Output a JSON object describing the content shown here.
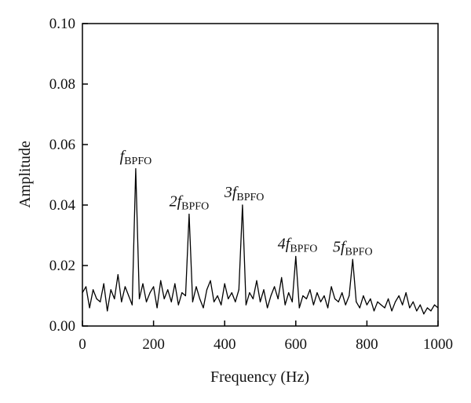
{
  "chart_data": {
    "type": "line",
    "xlabel": "Frequency (Hz)",
    "ylabel": "Amplitude",
    "xlim": [
      0,
      1000
    ],
    "ylim": [
      0,
      0.1
    ],
    "xticks": [
      0,
      200,
      400,
      600,
      800,
      1000
    ],
    "xtick_labels": [
      "0",
      "200",
      "400",
      "600",
      "800",
      "1000"
    ],
    "yticks": [
      0,
      0.02,
      0.04,
      0.06,
      0.08,
      0.1
    ],
    "ytick_labels": [
      "0.00",
      "0.02",
      "0.04",
      "0.06",
      "0.08",
      "0.10"
    ],
    "grid": false,
    "line_color": "#000000",
    "series": [
      {
        "x": [
          0,
          10,
          20,
          30,
          40,
          50,
          60,
          70,
          80,
          90,
          100,
          110,
          120,
          130,
          140,
          150,
          160,
          170,
          180,
          190,
          200,
          210,
          220,
          230,
          240,
          250,
          260,
          270,
          280,
          290,
          300,
          310,
          320,
          330,
          340,
          350,
          360,
          370,
          380,
          390,
          400,
          410,
          420,
          430,
          440,
          450,
          460,
          470,
          480,
          490,
          500,
          510,
          520,
          530,
          540,
          550,
          560,
          570,
          580,
          590,
          600,
          610,
          620,
          630,
          640,
          650,
          660,
          670,
          680,
          690,
          700,
          710,
          720,
          730,
          740,
          750,
          760,
          770,
          780,
          790,
          800,
          810,
          820,
          830,
          840,
          850,
          860,
          870,
          880,
          890,
          900,
          910,
          920,
          930,
          940,
          950,
          960,
          970,
          980,
          990,
          1000
        ],
        "y": [
          0.011,
          0.013,
          0.006,
          0.012,
          0.009,
          0.008,
          0.014,
          0.005,
          0.012,
          0.009,
          0.017,
          0.008,
          0.013,
          0.01,
          0.007,
          0.052,
          0.009,
          0.014,
          0.008,
          0.011,
          0.013,
          0.006,
          0.015,
          0.009,
          0.012,
          0.008,
          0.014,
          0.007,
          0.011,
          0.01,
          0.037,
          0.008,
          0.013,
          0.009,
          0.006,
          0.012,
          0.015,
          0.008,
          0.01,
          0.007,
          0.014,
          0.009,
          0.011,
          0.008,
          0.012,
          0.04,
          0.007,
          0.011,
          0.009,
          0.015,
          0.008,
          0.012,
          0.006,
          0.01,
          0.013,
          0.009,
          0.016,
          0.007,
          0.011,
          0.008,
          0.023,
          0.006,
          0.01,
          0.009,
          0.012,
          0.007,
          0.011,
          0.008,
          0.01,
          0.006,
          0.013,
          0.009,
          0.008,
          0.011,
          0.007,
          0.01,
          0.022,
          0.008,
          0.006,
          0.01,
          0.007,
          0.009,
          0.005,
          0.008,
          0.007,
          0.006,
          0.009,
          0.005,
          0.008,
          0.01,
          0.007,
          0.011,
          0.006,
          0.008,
          0.005,
          0.007,
          0.004,
          0.006,
          0.005,
          0.007,
          0.006
        ]
      }
    ],
    "annotations": [
      {
        "prefix": "",
        "main": "f",
        "sub": "BPFO",
        "x": 150,
        "y": 0.052
      },
      {
        "prefix": "2",
        "main": "f",
        "sub": "BPFO",
        "x": 300,
        "y": 0.037
      },
      {
        "prefix": "3",
        "main": "f",
        "sub": "BPFO",
        "x": 455,
        "y": 0.04
      },
      {
        "prefix": "4",
        "main": "f",
        "sub": "BPFO",
        "x": 605,
        "y": 0.023
      },
      {
        "prefix": "5",
        "main": "f",
        "sub": "BPFO",
        "x": 760,
        "y": 0.022
      }
    ]
  }
}
